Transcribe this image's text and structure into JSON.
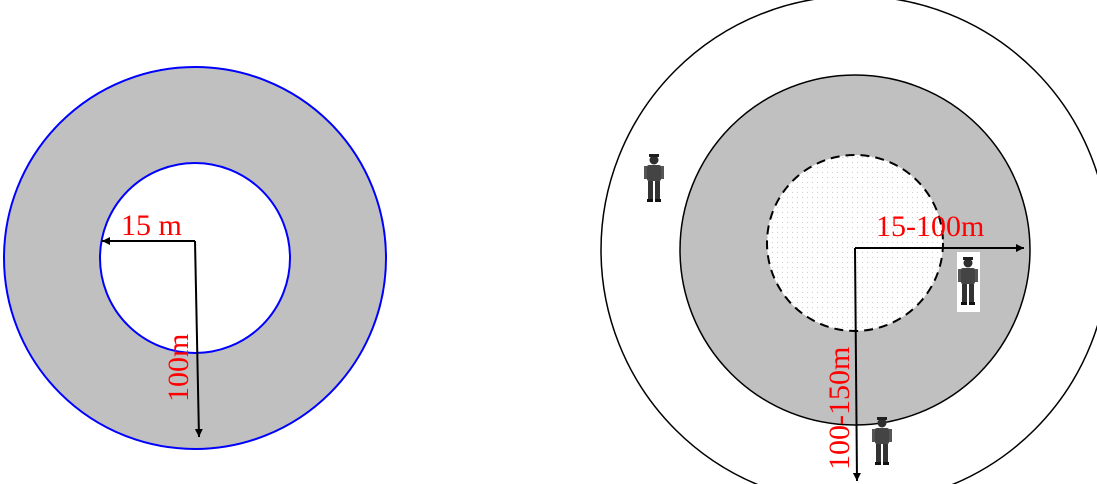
{
  "colors": {
    "ring_fill": "#C0C0C0",
    "left_border": "#0000FF",
    "label": "#FF0000",
    "line": "#000000",
    "inner_zone": "#F6F6F6"
  },
  "left_diagram": {
    "inner_radius_label": "15 m",
    "outer_radius_label": "100m"
  },
  "right_diagram": {
    "middle_radius_label": "15-100m",
    "outer_radius_label": "100-150m",
    "person_icon": "soldier-figure"
  }
}
